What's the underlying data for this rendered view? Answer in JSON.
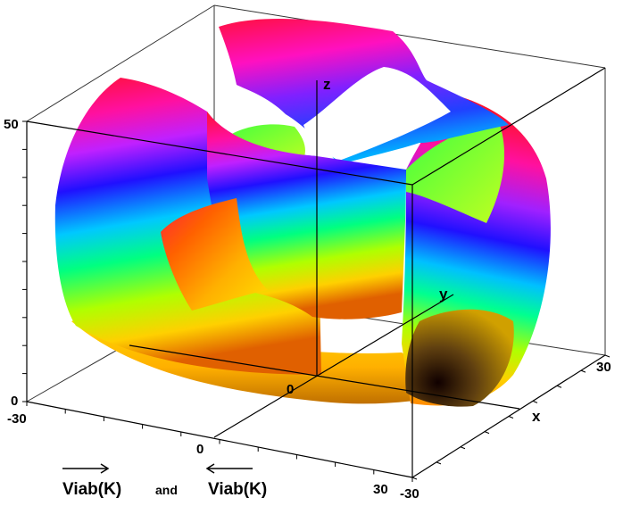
{
  "chart_data": {
    "type": "surface3d",
    "axes": {
      "x": {
        "label": "x",
        "range": [
          -30,
          30
        ],
        "tick_labels": [
          "-30",
          "0",
          "30"
        ]
      },
      "y": {
        "label": "y",
        "range": [
          -30,
          30
        ],
        "tick_labels": [
          "-30",
          "30"
        ]
      },
      "z": {
        "label": "z",
        "range": [
          0,
          50
        ],
        "tick_labels": [
          "0",
          "50"
        ]
      }
    },
    "origin_label": "0",
    "colormap": "hue-cycle (red, magenta, blue, cyan, green, yellow, orange)",
    "bounding_box": true,
    "caption": {
      "left": "Viab(K)",
      "connector": "and",
      "right": "Viab(K)",
      "left_arrow": "right",
      "right_arrow": "left"
    }
  }
}
